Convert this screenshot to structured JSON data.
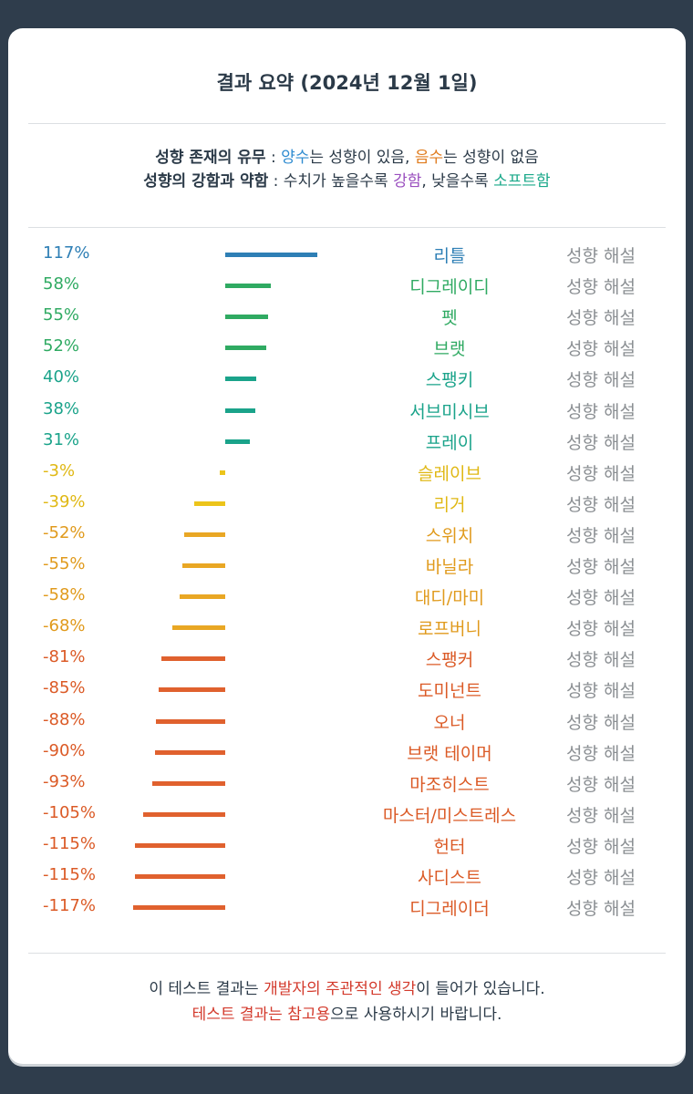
{
  "title": "결과 요약 (2024년 12월 1일)",
  "legend": {
    "line1": {
      "label": "성향 존재의 유무",
      "sep": " : ",
      "pos_word": "양수",
      "pos_rest": "는 성향이 있음, ",
      "neg_word": "음수",
      "neg_rest": "는 성향이 없음"
    },
    "line2": {
      "label": "성향의 강함과 약함",
      "sep": " : 수치가 높을수록 ",
      "strong_word": "강함",
      "mid": ", 낮을수록 ",
      "soft_word": "소프트함"
    }
  },
  "footer": {
    "line1": {
      "pre": "이 테스트 결과는 ",
      "red": "개발자의 주관적인 생각",
      "post": "이 들어가 있습니다."
    },
    "line2": {
      "red": "테스트 결과는 참고용",
      "post": "으로 사용하시기 바랍니다."
    }
  },
  "chart_data": {
    "type": "bar",
    "orientation": "horizontal",
    "link_label": "성향 해설",
    "categories": [
      "리틀",
      "디그레이디",
      "펫",
      "브랫",
      "스팽키",
      "서브미시브",
      "프레이",
      "슬레이브",
      "리거",
      "스위치",
      "바닐라",
      "대디/마미",
      "로프버니",
      "스팽커",
      "도미넌트",
      "오너",
      "브랫 테이머",
      "마조히스트",
      "마스터/미스트레스",
      "헌터",
      "사디스트",
      "디그레이더"
    ],
    "values": [
      117,
      58,
      55,
      52,
      40,
      38,
      31,
      -3,
      -39,
      -52,
      -55,
      -58,
      -68,
      -81,
      -85,
      -88,
      -90,
      -93,
      -105,
      -115,
      -115,
      -117
    ],
    "labels": [
      "117%",
      "58%",
      "55%",
      "52%",
      "40%",
      "38%",
      "31%",
      "-3%",
      "-39%",
      "-52%",
      "-55%",
      "-58%",
      "-68%",
      "-81%",
      "-85%",
      "-88%",
      "-90%",
      "-93%",
      "-105%",
      "-115%",
      "-115%",
      "-117%"
    ],
    "colors": [
      "#2e7fb5",
      "#2faa62",
      "#2faa62",
      "#2faa62",
      "#1aa38a",
      "#1aa38a",
      "#1aa38a",
      "#ecc41a",
      "#ecc41a",
      "#e9a724",
      "#e9a724",
      "#e9a724",
      "#e9a724",
      "#e0612e",
      "#e0612e",
      "#e0612e",
      "#e0612e",
      "#e0612e",
      "#e0612e",
      "#e0612e",
      "#e0612e",
      "#e0612e"
    ],
    "label_colors": [
      "#2e7fb5",
      "#2faa62",
      "#2faa62",
      "#2faa62",
      "#1aa38a",
      "#1aa38a",
      "#1aa38a",
      "#e0b814",
      "#e0b814",
      "#e09a1c",
      "#e09a1c",
      "#e09a1c",
      "#e09a1c",
      "#db5a26",
      "#db5a26",
      "#db5a26",
      "#db5a26",
      "#db5a26",
      "#db5a26",
      "#db5a26",
      "#db5a26",
      "#db5a26"
    ]
  }
}
